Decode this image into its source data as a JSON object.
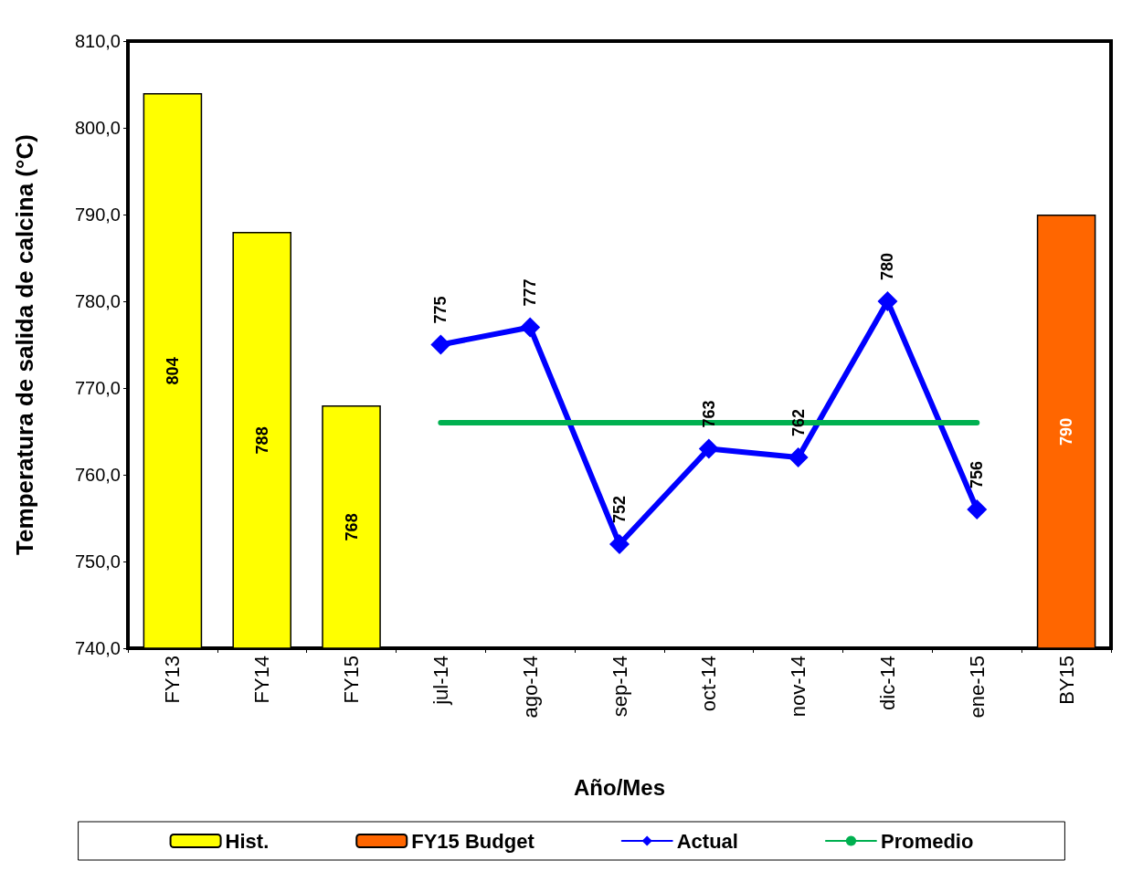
{
  "chart_data": {
    "type": "bar",
    "xlabel": "Año/Mes",
    "ylabel": "Temperatura de salida de calcina (°C)",
    "categories": [
      "FY13",
      "FY14",
      "FY15",
      "jul-14",
      "ago-14",
      "sep-14",
      "oct-14",
      "nov-14",
      "dic-14",
      "ene-15",
      "BY15"
    ],
    "series": [
      {
        "name": "Hist.",
        "color": "#ffff00",
        "values": [
          804,
          788,
          768,
          null,
          null,
          null,
          null,
          null,
          null,
          null,
          null
        ],
        "value_labels": [
          "804",
          "788",
          "768",
          null,
          null,
          null,
          null,
          null,
          null,
          null,
          null
        ]
      },
      {
        "name": "FY15 Budget",
        "color": "#ff6600",
        "values": [
          null,
          null,
          null,
          null,
          null,
          null,
          null,
          null,
          null,
          null,
          790
        ],
        "value_labels": [
          null,
          null,
          null,
          null,
          null,
          null,
          null,
          null,
          null,
          null,
          "790"
        ]
      },
      {
        "name": "Actual",
        "type": "line",
        "color": "#0000ff",
        "marker": "diamond",
        "values": [
          null,
          null,
          null,
          775,
          777,
          752,
          763,
          762,
          780,
          756,
          null
        ],
        "value_labels": [
          null,
          null,
          null,
          "775",
          "777",
          "752",
          "763",
          "762",
          "780",
          "756",
          null
        ]
      },
      {
        "name": "Promedio",
        "type": "line",
        "color": "#00b050",
        "marker": "none",
        "values": [
          null,
          null,
          null,
          766,
          766,
          766,
          766,
          766,
          766,
          766,
          null
        ]
      }
    ],
    "ylim": [
      740,
      810
    ],
    "yticks": [
      {
        "value": 740,
        "label": "740,0"
      },
      {
        "value": 750,
        "label": "750,0"
      },
      {
        "value": 760,
        "label": "760,0"
      },
      {
        "value": 770,
        "label": "770,0"
      },
      {
        "value": 780,
        "label": "780,0"
      },
      {
        "value": 790,
        "label": "790,0"
      },
      {
        "value": 800,
        "label": "800,0"
      },
      {
        "value": 810,
        "label": "810,0"
      }
    ],
    "grid": false,
    "legend": "bottom"
  }
}
